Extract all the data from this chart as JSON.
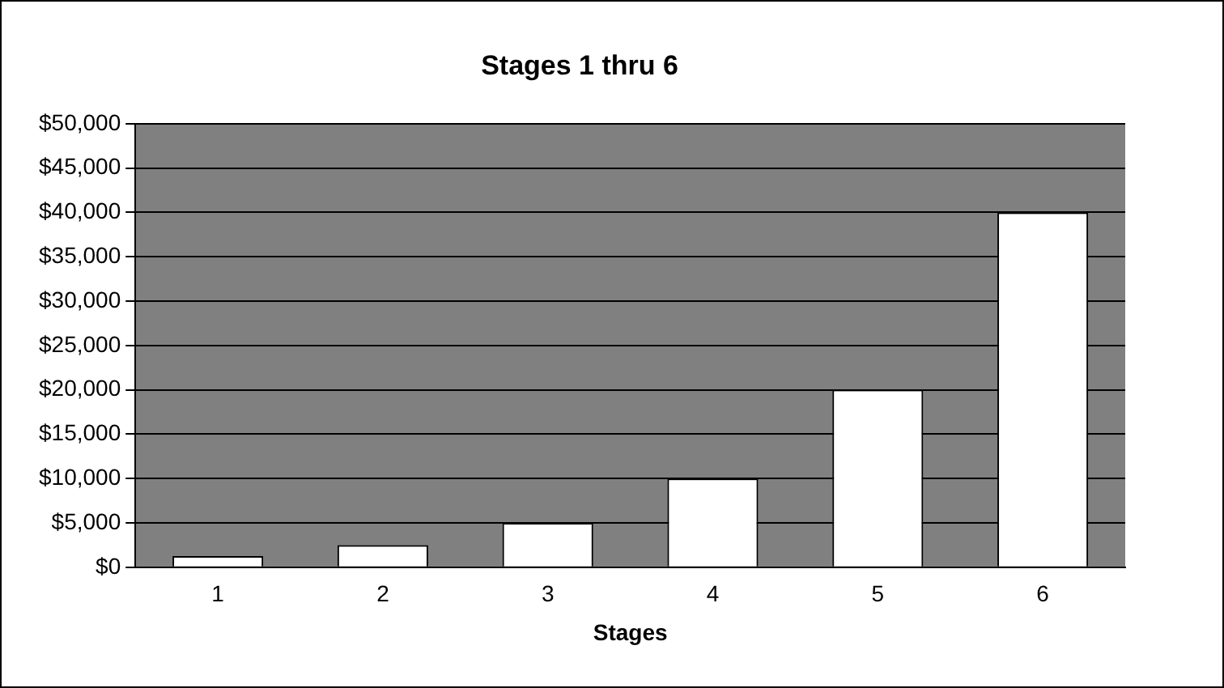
{
  "chart_data": {
    "type": "bar",
    "title": "Stages 1 thru 6",
    "xlabel": "Stages",
    "categories": [
      "1",
      "2",
      "3",
      "4",
      "5",
      "6"
    ],
    "values": [
      1250,
      2500,
      5000,
      10000,
      20000,
      40000
    ],
    "color": "#ffffff",
    "ylim": [
      0,
      50000
    ],
    "yticks": [
      {
        "value": 0,
        "label": "$0"
      },
      {
        "value": 5000,
        "label": "$5,000"
      },
      {
        "value": 10000,
        "label": "$10,000"
      },
      {
        "value": 15000,
        "label": "$15,000"
      },
      {
        "value": 20000,
        "label": "$20,000"
      },
      {
        "value": 25000,
        "label": "$25,000"
      },
      {
        "value": 30000,
        "label": "$30,000"
      },
      {
        "value": 35000,
        "label": "$35,000"
      },
      {
        "value": 40000,
        "label": "$40,000"
      },
      {
        "value": 45000,
        "label": "$45,000"
      },
      {
        "value": 50000,
        "label": "$50,000"
      }
    ],
    "grid": "y",
    "legend": false
  }
}
